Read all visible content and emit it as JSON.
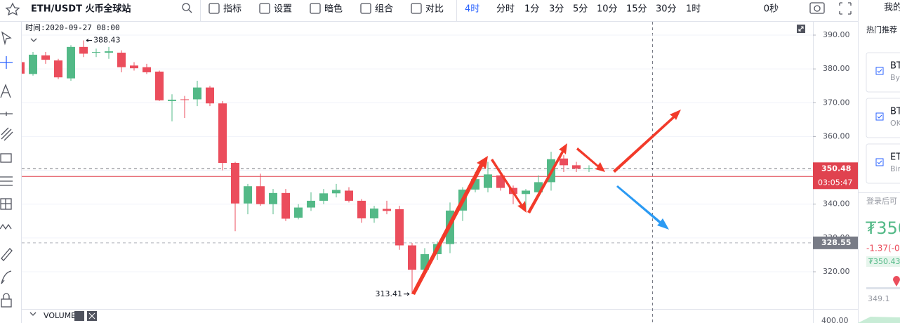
{
  "toolbar": {
    "symbol": "ETH/USDT 火币全球站",
    "buttons": [
      "指标",
      "设置",
      "暗色",
      "组合",
      "对比"
    ],
    "intervals": [
      "4时",
      "分时",
      "1分",
      "3分",
      "5分",
      "10分",
      "15分",
      "30分",
      "1时"
    ],
    "timer": "0秒"
  },
  "chart_data": {
    "type": "candlestick",
    "info": "时间:2020-09-27 08:00",
    "up_color": "#53b987",
    "down_color": "#eb4d5c",
    "series": {
      "open": [
        382,
        378.5,
        384,
        382.5,
        377.2,
        386.5,
        384.8,
        384.8,
        384.8,
        381,
        380.5,
        379.2,
        370.5,
        371,
        371,
        374.5,
        369.8,
        352.2,
        340.2,
        345.3,
        340,
        343.3,
        336,
        339,
        341,
        343.2,
        344,
        341,
        335.8,
        338.6,
        338.5,
        327.8,
        320.6,
        325.2,
        328.2,
        338.1,
        344.3,
        344.8,
        348.5,
        344.8,
        343,
        343.5,
        346.5,
        353.5,
        351.5,
        350.4,
        350.6
      ],
      "high": [
        383,
        385,
        385,
        383,
        387,
        388.43,
        386,
        386.5,
        385.5,
        382,
        381.5,
        379.5,
        372.5,
        372,
        376.5,
        375,
        370.5,
        352.5,
        346,
        349,
        344.5,
        344.5,
        340,
        343.5,
        344.5,
        346,
        345,
        341.5,
        339.5,
        341,
        339.5,
        328.5,
        327,
        329,
        340.5,
        345,
        349.5,
        352.5,
        350,
        345.5,
        344.5,
        348.5,
        355.5,
        354.5,
        352.5,
        351.5,
        351
      ],
      "low": [
        378,
        378,
        381.5,
        377,
        376.5,
        383.5,
        383.5,
        383,
        379,
        379.5,
        378.5,
        370.5,
        364.5,
        365.5,
        369,
        369,
        350,
        332,
        337,
        339.5,
        337,
        335,
        335.5,
        338,
        340,
        342,
        340.5,
        334.5,
        334.5,
        337,
        326.5,
        313.41,
        320,
        323.5,
        325.5,
        335,
        343.5,
        343.5,
        344,
        340,
        338,
        342.5,
        344,
        349.5,
        349.5,
        349.5,
        350
      ],
      "close": [
        378.6,
        384.2,
        382.7,
        377.5,
        386.5,
        384.5,
        385,
        385.2,
        380.5,
        380.2,
        379,
        370.7,
        370.9,
        370.8,
        374.5,
        369.8,
        352.2,
        340.2,
        345.3,
        340,
        343.3,
        335.7,
        339,
        341,
        343.2,
        344.2,
        341,
        335.8,
        338.7,
        338,
        327.8,
        320.6,
        325.2,
        328.2,
        338.1,
        344.3,
        347.4,
        348.8,
        344.8,
        343,
        344,
        346.5,
        353.3,
        351.5,
        350.5,
        350.6,
        350.48
      ]
    },
    "ylim": [
      309,
      394.15
    ],
    "yticks": [
      {
        "value": 320,
        "label": "320.00"
      },
      {
        "value": 330,
        "label": "330.00"
      },
      {
        "value": 340,
        "label": "340.00"
      },
      {
        "value": 350,
        "label": "350.00"
      },
      {
        "value": 360,
        "label": "360.00"
      },
      {
        "value": 370,
        "label": "370.00"
      },
      {
        "value": 380,
        "label": "380.00"
      },
      {
        "value": 390,
        "label": "390.00"
      }
    ],
    "grid": true,
    "high_label": 388.43,
    "low_label": 313.41,
    "price_lines": [
      {
        "value": 350.48,
        "color": "#e0424f",
        "countdown": "03:05:47"
      },
      {
        "value": 328.55,
        "color": "#787b86"
      }
    ],
    "volume": {
      "title": "VOLUME",
      "tick": {
        "value": 400,
        "label": "400.00"
      }
    }
  },
  "side_panel": {
    "header": "我的",
    "section": "热门推荐",
    "items": [
      {
        "name": "BT",
        "exchange": "By"
      },
      {
        "name": "BT",
        "exchange": "OK"
      },
      {
        "name": "ET",
        "exchange": "Bin"
      }
    ],
    "login": "登录后可",
    "price": "₮350",
    "change": "-1.37(-0.",
    "badge": "₮350.43",
    "low": "349.1"
  }
}
